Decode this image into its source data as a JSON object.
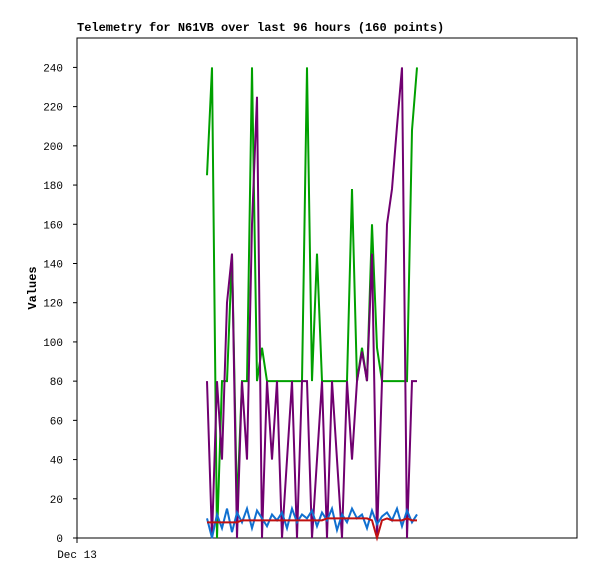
{
  "chart_data": {
    "type": "line",
    "title": "Telemetry for N61VB over last 96 hours (160 points)",
    "y_label": "Values",
    "categories": [
      "Dec 13",
      null,
      null,
      null,
      null,
      null,
      null,
      null,
      null,
      null,
      null,
      null,
      null,
      null,
      null,
      null,
      null,
      null,
      null,
      null,
      null,
      null,
      null,
      null,
      null,
      null,
      null,
      null,
      null,
      null,
      null,
      null,
      null,
      null,
      null,
      null,
      null,
      null,
      null,
      null,
      null,
      null,
      null,
      null,
      null,
      null,
      null,
      null,
      null,
      null,
      null,
      null,
      null,
      null,
      null,
      null,
      null,
      null,
      null,
      null,
      null,
      null,
      null,
      null,
      null,
      null,
      null,
      null,
      null,
      null,
      null,
      null,
      null,
      null,
      null,
      null,
      null,
      null,
      null,
      null,
      null,
      null,
      null,
      null,
      null,
      null,
      null,
      null,
      null,
      null,
      null,
      null,
      null,
      null,
      null,
      null,
      null,
      null,
      null,
      null
    ],
    "ylim": [
      0,
      255
    ],
    "yticks": [
      0,
      20,
      40,
      60,
      80,
      100,
      120,
      140,
      160,
      180,
      200,
      220,
      240
    ],
    "series": [
      {
        "color": "#00a000",
        "values": [
          null,
          null,
          null,
          null,
          null,
          null,
          null,
          null,
          null,
          null,
          null,
          null,
          null,
          null,
          null,
          null,
          null,
          null,
          null,
          null,
          null,
          null,
          null,
          null,
          null,
          null,
          185,
          240,
          0,
          80,
          80,
          145,
          15,
          80,
          80,
          240,
          80,
          97,
          80,
          80,
          80,
          80,
          80,
          80,
          80,
          80,
          240,
          80,
          145,
          80,
          80,
          80,
          80,
          80,
          80,
          178,
          80,
          97,
          80,
          160,
          97,
          80,
          80,
          80,
          80,
          80,
          80,
          208,
          240,
          null,
          null,
          null,
          null,
          null,
          null,
          null,
          null,
          null,
          null,
          null,
          null,
          null,
          null,
          null,
          null,
          null,
          null,
          null,
          null,
          null,
          null,
          null,
          null,
          null,
          null,
          null,
          null,
          null,
          null,
          null
        ]
      },
      {
        "color": "#700070",
        "values": [
          null,
          null,
          null,
          null,
          null,
          null,
          null,
          null,
          null,
          null,
          null,
          null,
          null,
          null,
          null,
          null,
          null,
          null,
          null,
          null,
          null,
          null,
          null,
          null,
          null,
          null,
          80,
          0,
          80,
          40,
          120,
          145,
          0,
          80,
          40,
          160,
          225,
          0,
          80,
          40,
          80,
          0,
          40,
          80,
          0,
          80,
          80,
          0,
          40,
          80,
          0,
          80,
          40,
          0,
          80,
          40,
          80,
          95,
          80,
          145,
          0,
          80,
          160,
          178,
          210,
          240,
          0,
          80,
          80,
          null,
          null,
          null,
          null,
          null,
          null,
          null,
          null,
          null,
          null,
          null,
          null,
          null,
          null,
          null,
          null,
          null,
          null,
          null,
          null,
          null,
          null,
          null,
          null,
          null,
          null,
          null,
          null,
          null,
          null,
          null
        ]
      },
      {
        "color": "#1070d0",
        "values": [
          null,
          null,
          null,
          null,
          null,
          null,
          null,
          null,
          null,
          null,
          null,
          null,
          null,
          null,
          null,
          null,
          null,
          null,
          null,
          null,
          null,
          null,
          null,
          null,
          null,
          null,
          10,
          0,
          12,
          5,
          15,
          3,
          13,
          8,
          15,
          5,
          14,
          10,
          6,
          12,
          9,
          13,
          5,
          15,
          8,
          12,
          10,
          14,
          6,
          13,
          9,
          15,
          4,
          12,
          8,
          15,
          10,
          12,
          5,
          14,
          7,
          11,
          13,
          9,
          15,
          6,
          14,
          8,
          12,
          null,
          null,
          null,
          null,
          null,
          null,
          null,
          null,
          null,
          null,
          null,
          null,
          null,
          null,
          null,
          null,
          null,
          null,
          null,
          null,
          null,
          null,
          null,
          null,
          null,
          null,
          null,
          null,
          null,
          null,
          null
        ]
      },
      {
        "color": "#c01010",
        "values": [
          null,
          null,
          null,
          null,
          null,
          null,
          null,
          null,
          null,
          null,
          null,
          null,
          null,
          null,
          null,
          null,
          null,
          null,
          null,
          null,
          null,
          null,
          null,
          null,
          null,
          null,
          8,
          8,
          8,
          8,
          8,
          8,
          8,
          9,
          9,
          9,
          9,
          9,
          9,
          9,
          9,
          9,
          9,
          9,
          9,
          9,
          9,
          9,
          9,
          9,
          10,
          10,
          10,
          10,
          10,
          10,
          10,
          10,
          10,
          9,
          0,
          9,
          10,
          9,
          9,
          9,
          10,
          9,
          9,
          null,
          null,
          null,
          null,
          null,
          null,
          null,
          null,
          null,
          null,
          null,
          null,
          null,
          null,
          null,
          null,
          null,
          null,
          null,
          null,
          null,
          null,
          null,
          null,
          null,
          null,
          null,
          null,
          null,
          null,
          null
        ]
      }
    ]
  }
}
